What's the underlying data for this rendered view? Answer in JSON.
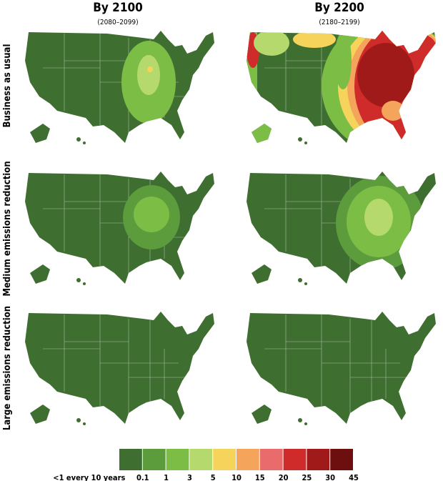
{
  "columns": [
    {
      "title": "By 2100",
      "subtitle": "(2080–2099)"
    },
    {
      "title": "By 2200",
      "subtitle": "(2180–2199)"
    }
  ],
  "rows": [
    "Business as usual",
    "Medium emissions reduction",
    "Large emissions reduction"
  ],
  "legend": {
    "colors": [
      "#3f6e31",
      "#5c9c3c",
      "#7cbd45",
      "#b5d96c",
      "#f6d35a",
      "#f4a55b",
      "#ea6b6b",
      "#cf2b2b",
      "#a11a1a",
      "#6d0f0f"
    ],
    "labels": [
      "<1 every 10 years",
      "0.1",
      "1",
      "3",
      "5",
      "10",
      "15",
      "20",
      "25",
      "30",
      "45"
    ]
  }
}
